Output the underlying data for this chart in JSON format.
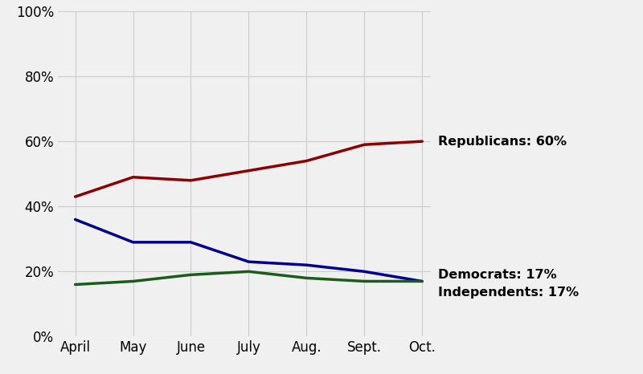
{
  "x_labels": [
    "April",
    "May",
    "June",
    "July",
    "Aug.",
    "Sept.",
    "Oct."
  ],
  "republicans": [
    43,
    49,
    48,
    51,
    54,
    59,
    60
  ],
  "democrats": [
    36,
    29,
    29,
    23,
    22,
    20,
    17
  ],
  "independents": [
    16,
    17,
    19,
    20,
    18,
    17,
    17
  ],
  "rep_color": "#8B0000",
  "dem_color": "#00008B",
  "ind_color": "#1a5c1a",
  "line_width": 2.5,
  "rep_label": "Republicans: 60%",
  "dem_label": "Democrats: 17%",
  "ind_label": "Independents: 17%",
  "ylim": [
    0,
    100
  ],
  "yticks": [
    0,
    20,
    40,
    60,
    80,
    100
  ],
  "background_color": "#f0f0f0",
  "grid_color": "#cccccc",
  "annotation_fontsize": 11.5,
  "tick_fontsize": 12,
  "annotation_fontweight": "bold"
}
